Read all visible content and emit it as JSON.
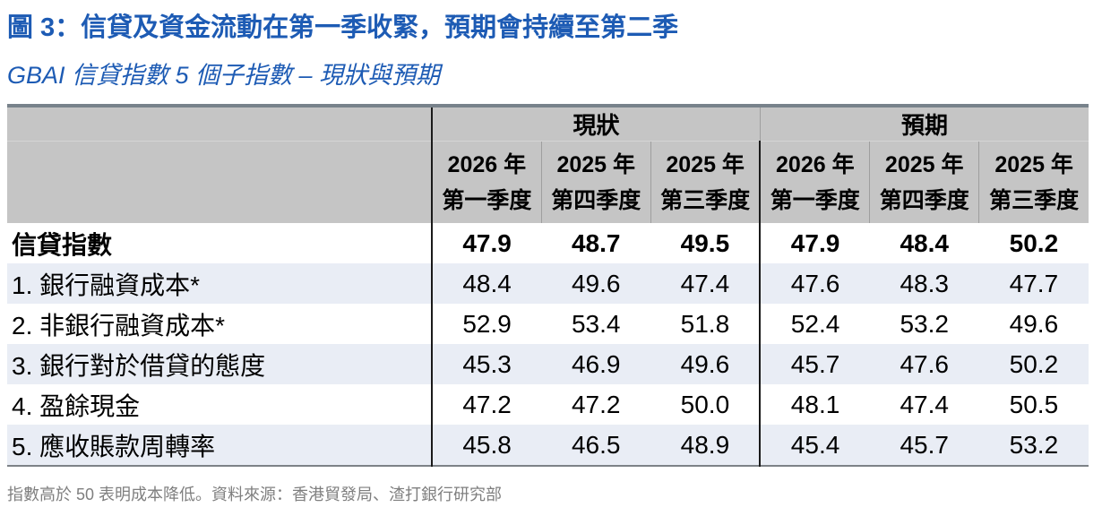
{
  "chart_data": {
    "type": "table",
    "title": "圖 3：信貸及資金流動在第一季收緊，預期會持續至第二季",
    "subtitle": "GBAI 信貸指數 5 個子指數 – 現狀與預期",
    "column_groups": [
      {
        "label": "現狀",
        "span": 3
      },
      {
        "label": "預期",
        "span": 3
      }
    ],
    "columns": [
      {
        "line1": "2026 年",
        "line2": "第一季度"
      },
      {
        "line1": "2025 年",
        "line2": "第四季度"
      },
      {
        "line1": "2025 年",
        "line2": "第三季度"
      },
      {
        "line1": "2026 年",
        "line2": "第一季度"
      },
      {
        "line1": "2025 年",
        "line2": "第四季度"
      },
      {
        "line1": "2025 年",
        "line2": "第三季度"
      }
    ],
    "rows": [
      {
        "label": "信貸指數",
        "bold": true,
        "values": [
          "47.9",
          "48.7",
          "49.5",
          "47.9",
          "48.4",
          "50.2"
        ]
      },
      {
        "label": "1. 銀行融資成本*",
        "bold": false,
        "values": [
          "48.4",
          "49.6",
          "47.4",
          "47.6",
          "48.3",
          "47.7"
        ]
      },
      {
        "label": "2. 非銀行融資成本*",
        "bold": false,
        "values": [
          "52.9",
          "53.4",
          "51.8",
          "52.4",
          "53.2",
          "49.6"
        ]
      },
      {
        "label": "3. 銀行對於借貸的態度",
        "bold": false,
        "values": [
          "45.3",
          "46.9",
          "49.6",
          "45.7",
          "47.6",
          "50.2"
        ]
      },
      {
        "label": "4. 盈餘現金",
        "bold": false,
        "values": [
          "47.2",
          "47.2",
          "50.0",
          "48.1",
          "47.4",
          "50.5"
        ]
      },
      {
        "label": "5. 應收賬款周轉率",
        "bold": false,
        "values": [
          "45.8",
          "46.5",
          "48.9",
          "45.4",
          "45.7",
          "53.2"
        ]
      }
    ],
    "note": "指數高於 50 表明成本降低。資料來源：香港貿發局、渣打銀行研究部"
  },
  "colors": {
    "title_blue": "#1d5bb4",
    "header_gray": "#c5c5c5",
    "row_alt_blue": "#e9edf5",
    "divider_dark": "#1a1a1a",
    "divider_light": "#9e9e9e",
    "table_top_border": "#78828b",
    "table_bottom_border": "#7d8287",
    "note_gray": "#7f7f7f"
  }
}
